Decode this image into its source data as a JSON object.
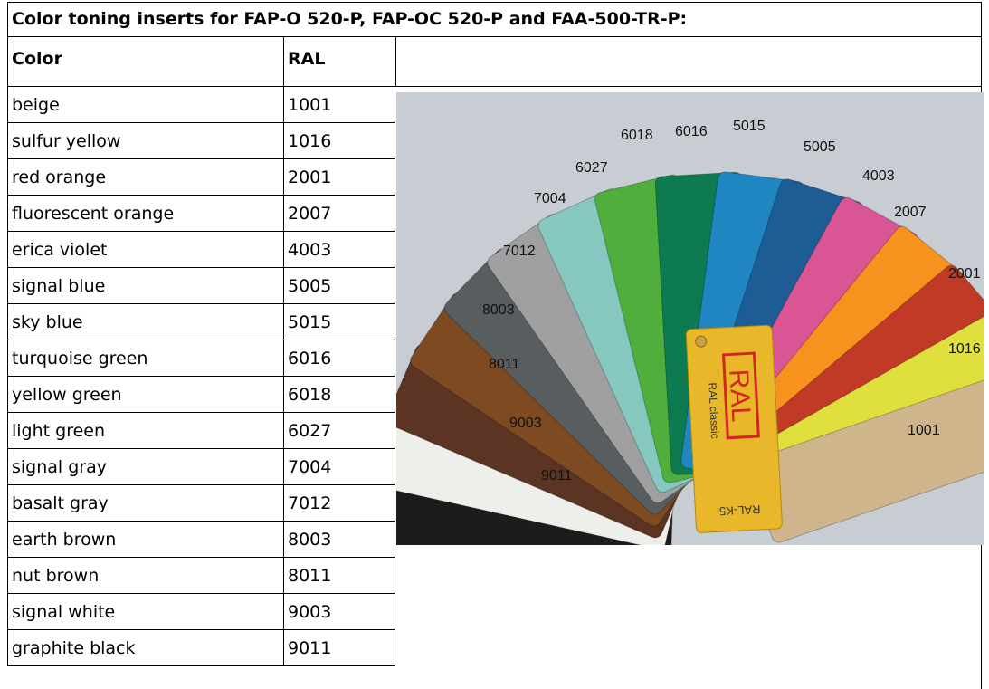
{
  "title": "Color toning inserts for FAP-O 520-P, FAP-OC 520-P and FAA-500-TR-P:",
  "table": {
    "header": [
      "Color",
      "RAL"
    ],
    "rows": [
      [
        "beige",
        "1001"
      ],
      [
        "sulfur yellow",
        "1016"
      ],
      [
        "red orange",
        "2001"
      ],
      [
        "fluorescent orange",
        "2007"
      ],
      [
        "erica violet",
        "4003"
      ],
      [
        "signal blue",
        "5005"
      ],
      [
        "sky blue",
        "5015"
      ],
      [
        "turquoise green",
        "6016"
      ],
      [
        "yellow green",
        "6018"
      ],
      [
        "light green",
        "6027"
      ],
      [
        "signal gray",
        "7004"
      ],
      [
        "basalt gray",
        "7012"
      ],
      [
        "earth brown",
        "8003"
      ],
      [
        "nut brown",
        "8011"
      ],
      [
        "signal white",
        "9003"
      ],
      [
        "graphite black",
        "9011"
      ]
    ]
  },
  "photo": {
    "labels": [
      "9011",
      "9003",
      "8011",
      "8003",
      "7012",
      "7004",
      "6027",
      "6018",
      "6016",
      "5015",
      "5005",
      "4003",
      "2007",
      "2001",
      "1016",
      "1001"
    ],
    "card_texts": [
      "RAL",
      "RAL classic",
      "RAL-K5"
    ]
  }
}
